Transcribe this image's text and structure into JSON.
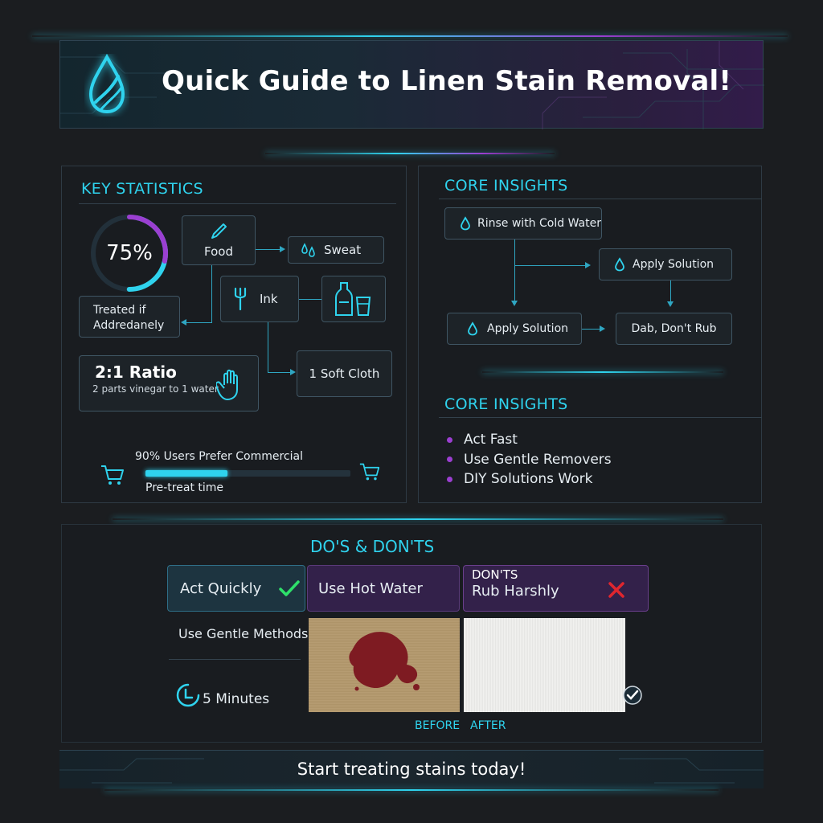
{
  "header": {
    "title": "Quick Guide to Linen Stain Removal!"
  },
  "key_statistics": {
    "title": "KEY STATISTICS",
    "gauge_value": 75,
    "gauge_label": "75%",
    "treated_label": "Treated if Addredanely",
    "food": "Food",
    "sweat": "Sweat",
    "ink": "Ink",
    "ratio_title": "2:1 Ratio",
    "ratio_sub": "2 parts vinegar to 1 water",
    "soft_cloth": "1 Soft Cloth",
    "bar_label": "90% Users Prefer Commercial",
    "bar_value": 0.4,
    "bar_sub": "Pre-treat time"
  },
  "core_insights": {
    "title": "CORE INSIGHTS",
    "rinse": "Rinse with Cold Water",
    "apply_right": "Apply Solution",
    "apply_left": "Apply Solution",
    "dab": "Dab, Don't Rub"
  },
  "core_insights_2": {
    "title": "CORE INSIGHTS",
    "items": [
      "Act Fast",
      "Use Gentle Removers",
      "DIY Solutions Work"
    ]
  },
  "dos_donts": {
    "title": "DO'S & DON'TS",
    "act_quickly": "Act Quickly",
    "hot_water": "Use Hot Water",
    "donts_label": "DON'TS",
    "rub_harshly": "Rub Harshly",
    "gentle_methods": "Use Gentle Methods",
    "minutes": "5 Minutes",
    "before": "BEFORE",
    "after": "AFTER"
  },
  "footer": {
    "cta": "Start treating stains today!"
  },
  "colors": {
    "accent": "#2fd3ee",
    "purple": "#9b3fd1",
    "check": "#2ee06a",
    "cross": "#e0262e",
    "stain": "#7e1b22"
  }
}
